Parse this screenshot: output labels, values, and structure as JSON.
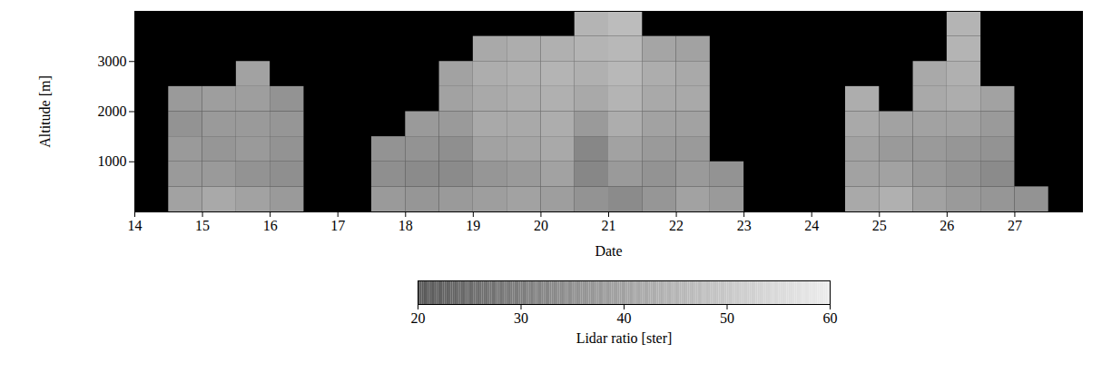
{
  "chart_data": {
    "type": "heatmap",
    "x_label": "Date",
    "y_label": "Altitude [m]",
    "xlim": [
      14,
      28
    ],
    "xticks": [
      14,
      15,
      16,
      17,
      18,
      19,
      20,
      21,
      22,
      23,
      24,
      25,
      26,
      27
    ],
    "ylim": [
      0,
      4000
    ],
    "yticks": [
      1000,
      2000,
      3000
    ],
    "x_bins": [
      14,
      14.5,
      15,
      15.5,
      16,
      16.5,
      17,
      17.5,
      18,
      18.5,
      19,
      19.5,
      20,
      20.5,
      21,
      21.5,
      22,
      22.5,
      23,
      23.5,
      24,
      24.5,
      25,
      25.5,
      26,
      26.5,
      27,
      27.5,
      28
    ],
    "y_bins": [
      0,
      500,
      1000,
      1500,
      2000,
      2500,
      3000,
      3500,
      4000
    ],
    "values": [
      [
        null,
        40,
        42,
        40,
        38,
        null,
        null,
        38,
        37,
        38,
        39,
        40,
        39,
        36,
        34,
        37,
        40,
        38,
        null,
        null,
        null,
        42,
        44,
        40,
        38,
        37,
        36,
        null
      ],
      [
        null,
        38,
        38,
        36,
        35,
        null,
        null,
        35,
        34,
        34,
        37,
        38,
        40,
        33,
        38,
        36,
        38,
        36,
        null,
        null,
        null,
        40,
        40,
        38,
        36,
        34,
        null,
        null
      ],
      [
        null,
        38,
        37,
        38,
        36,
        null,
        null,
        36,
        36,
        35,
        40,
        41,
        42,
        33,
        40,
        38,
        38,
        null,
        null,
        null,
        null,
        40,
        38,
        38,
        37,
        36,
        null,
        null
      ],
      [
        null,
        36,
        38,
        38,
        37,
        null,
        null,
        null,
        38,
        38,
        42,
        42,
        43,
        38,
        43,
        40,
        40,
        null,
        null,
        null,
        null,
        42,
        40,
        40,
        40,
        38,
        null,
        null
      ],
      [
        null,
        38,
        39,
        39,
        36,
        null,
        null,
        null,
        null,
        40,
        42,
        43,
        44,
        42,
        45,
        42,
        42,
        null,
        null,
        null,
        null,
        43,
        null,
        42,
        43,
        40,
        null,
        null
      ],
      [
        null,
        null,
        null,
        40,
        null,
        null,
        null,
        null,
        null,
        40,
        43,
        44,
        45,
        44,
        46,
        43,
        42,
        null,
        null,
        null,
        null,
        null,
        null,
        42,
        44,
        null,
        null,
        null
      ],
      [
        null,
        null,
        null,
        null,
        null,
        null,
        null,
        null,
        null,
        null,
        42,
        43,
        44,
        45,
        46,
        41,
        40,
        null,
        null,
        null,
        null,
        null,
        null,
        null,
        45,
        null,
        null,
        null
      ],
      [
        null,
        null,
        null,
        null,
        null,
        null,
        null,
        null,
        null,
        null,
        null,
        null,
        null,
        45,
        47,
        null,
        null,
        null,
        null,
        null,
        null,
        null,
        null,
        null,
        45,
        null,
        null,
        null
      ]
    ],
    "colorbar": {
      "label": "Lidar ratio [ster]",
      "lim": [
        20,
        60
      ],
      "ticks": [
        20,
        30,
        40,
        50,
        60
      ]
    }
  }
}
